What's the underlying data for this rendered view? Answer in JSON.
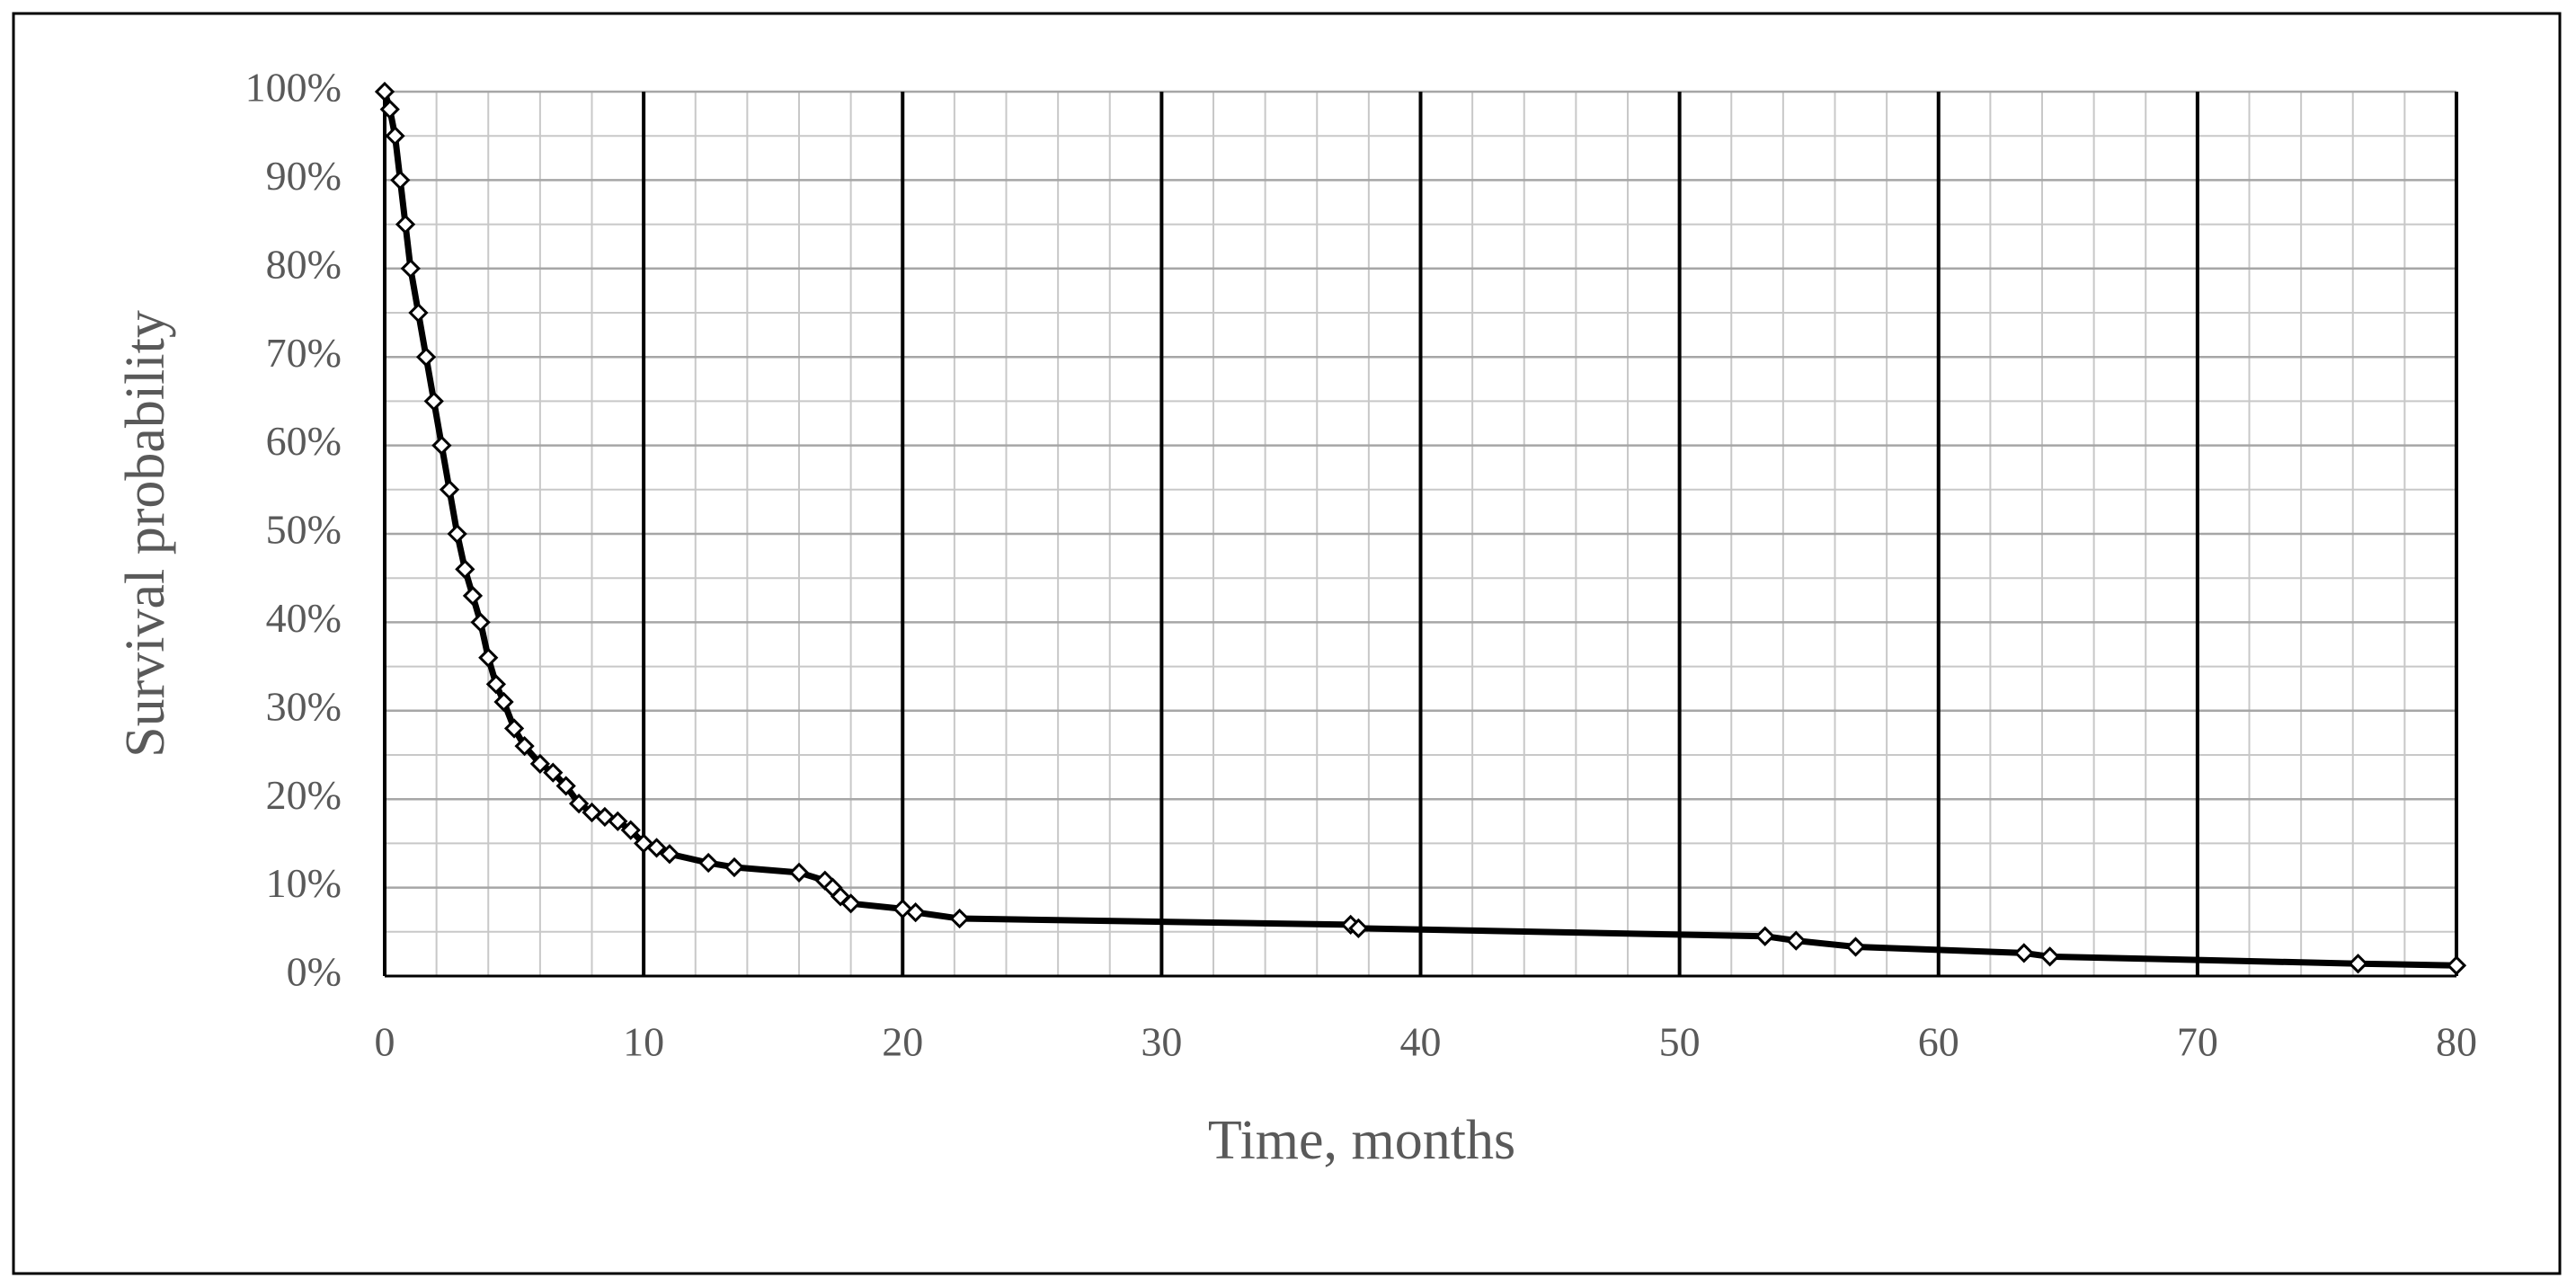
{
  "chart_data": {
    "type": "line",
    "x_label": "Time, months",
    "y_label": "Survival probability",
    "xlim": [
      0,
      80
    ],
    "ylim": [
      0,
      100
    ],
    "xticks": [
      0,
      10,
      20,
      30,
      40,
      50,
      60,
      70,
      80
    ],
    "yticks": [
      {
        "value": 0,
        "label": "0%"
      },
      {
        "value": 10,
        "label": "10%"
      },
      {
        "value": 20,
        "label": "20%"
      },
      {
        "value": 30,
        "label": "30%"
      },
      {
        "value": 40,
        "label": "40%"
      },
      {
        "value": 50,
        "label": "50%"
      },
      {
        "value": 60,
        "label": "60%"
      },
      {
        "value": 70,
        "label": "70%"
      },
      {
        "value": 80,
        "label": "80%"
      },
      {
        "value": 90,
        "label": "90%"
      },
      {
        "value": 100,
        "label": "100%"
      }
    ],
    "x_minor_ticks": [
      2,
      4,
      6,
      8,
      12,
      14,
      16,
      18,
      22,
      24,
      26,
      28,
      32,
      34,
      36,
      38,
      42,
      44,
      46,
      48,
      52,
      54,
      56,
      58,
      62,
      64,
      66,
      68,
      72,
      74,
      76,
      78
    ],
    "y_minor_ticks": [
      5,
      15,
      25,
      35,
      45,
      55,
      65,
      75,
      85,
      95
    ],
    "grid": true,
    "series": [
      {
        "color": "#000000",
        "x": [
          0,
          0.2,
          0.4,
          0.6,
          0.8,
          1,
          1.3,
          1.6,
          1.9,
          2.2,
          2.5,
          2.8,
          3.1,
          3.4,
          3.7,
          4,
          4.3,
          4.6,
          5,
          5.4,
          6,
          6.5,
          7,
          7.5,
          8,
          8.5,
          9,
          9.5,
          10,
          10.5,
          11,
          12.5,
          13.5,
          16,
          17,
          17.3,
          17.6,
          18,
          20,
          20.5,
          22.2,
          37.3,
          37.6,
          53.3,
          54.5,
          56.8,
          63.3,
          64.3,
          76.2,
          80
        ],
        "values": [
          100,
          98,
          95,
          90,
          85,
          80,
          75,
          70,
          65,
          60,
          55,
          50,
          46,
          43,
          40,
          36,
          33,
          31,
          28,
          26,
          24,
          23,
          21.5,
          19.5,
          18.5,
          18,
          17.5,
          16.5,
          15,
          14.5,
          13.8,
          12.8,
          12.3,
          11.7,
          10.8,
          10,
          9,
          8.2,
          7.6,
          7.2,
          6.5,
          5.8,
          5.4,
          4.5,
          4,
          3.3,
          2.6,
          2.2,
          1.4,
          1.2
        ]
      }
    ]
  }
}
